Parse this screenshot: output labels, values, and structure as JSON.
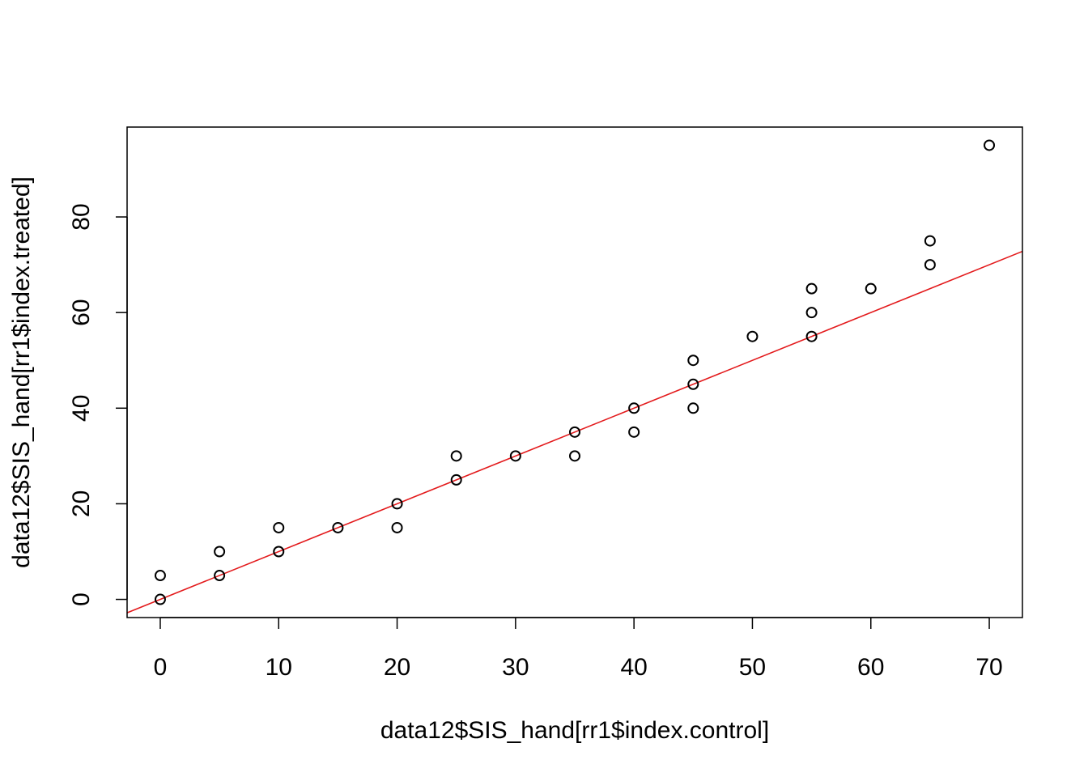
{
  "chart_data": {
    "type": "scatter",
    "title": "",
    "xlabel": "data12$SIS_hand[rr1$index.control]",
    "ylabel": "data12$SIS_hand[rr1$index.treated]",
    "xlim": [
      -2.8,
      72.8
    ],
    "ylim": [
      -3.8,
      98.8
    ],
    "x_ticks": [
      0,
      10,
      20,
      30,
      40,
      50,
      60,
      70
    ],
    "y_ticks": [
      0,
      20,
      40,
      60,
      80
    ],
    "grid": false,
    "legend": "none",
    "points": [
      {
        "x": 0,
        "y": 0
      },
      {
        "x": 0,
        "y": 5
      },
      {
        "x": 5,
        "y": 5
      },
      {
        "x": 5,
        "y": 10
      },
      {
        "x": 10,
        "y": 10
      },
      {
        "x": 10,
        "y": 15
      },
      {
        "x": 15,
        "y": 15
      },
      {
        "x": 20,
        "y": 15
      },
      {
        "x": 20,
        "y": 20
      },
      {
        "x": 25,
        "y": 25
      },
      {
        "x": 25,
        "y": 30
      },
      {
        "x": 30,
        "y": 30
      },
      {
        "x": 35,
        "y": 30
      },
      {
        "x": 35,
        "y": 35
      },
      {
        "x": 40,
        "y": 35
      },
      {
        "x": 40,
        "y": 40
      },
      {
        "x": 45,
        "y": 40
      },
      {
        "x": 45,
        "y": 45
      },
      {
        "x": 45,
        "y": 50
      },
      {
        "x": 50,
        "y": 55
      },
      {
        "x": 55,
        "y": 55
      },
      {
        "x": 55,
        "y": 60
      },
      {
        "x": 55,
        "y": 65
      },
      {
        "x": 60,
        "y": 65
      },
      {
        "x": 65,
        "y": 70
      },
      {
        "x": 65,
        "y": 75
      },
      {
        "x": 70,
        "y": 95
      }
    ],
    "reference_line": {
      "intercept": 0,
      "slope": 1
    },
    "colors": {
      "points": "#000000",
      "line": "#e31a1c",
      "axes": "#000000"
    }
  }
}
